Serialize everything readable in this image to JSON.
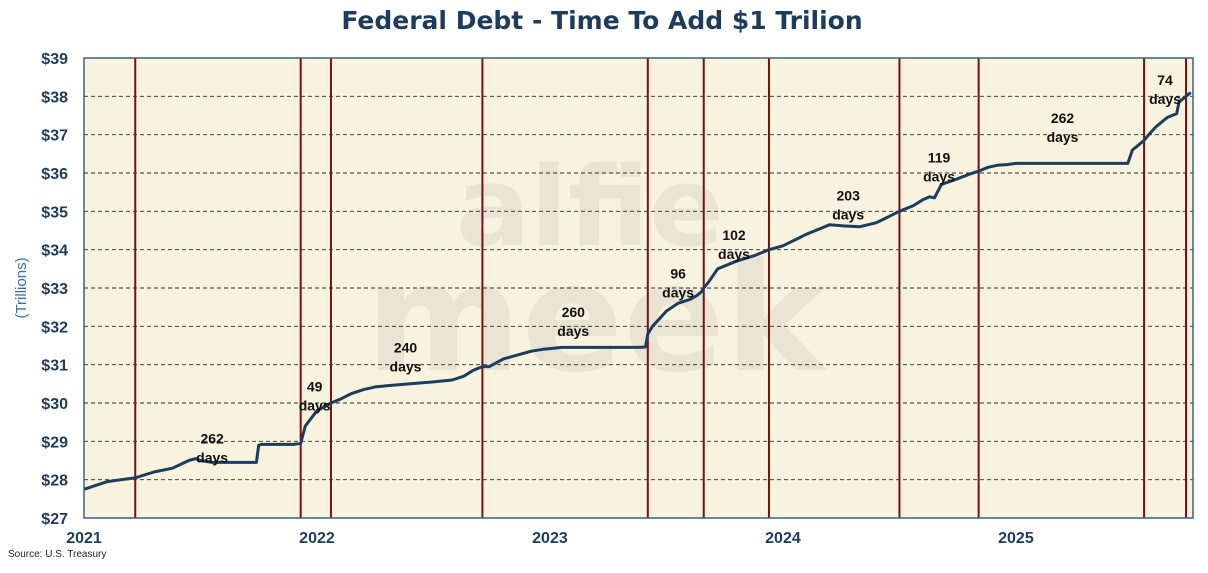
{
  "chart_data": {
    "type": "line",
    "title": "Federal Debt - Time To Add $1 Trilion",
    "ylabel": "(Trillions)",
    "xlabel": "",
    "source": "Source: U.S. Treasury",
    "watermark": [
      "alfie",
      "meek"
    ],
    "ylim": [
      27,
      39
    ],
    "xlim": [
      2021.0,
      2025.76
    ],
    "y_ticks": [
      {
        "value": 27,
        "label": "$27"
      },
      {
        "value": 28,
        "label": "$28"
      },
      {
        "value": 29,
        "label": "$29"
      },
      {
        "value": 30,
        "label": "$30"
      },
      {
        "value": 31,
        "label": "$31"
      },
      {
        "value": 32,
        "label": "$32"
      },
      {
        "value": 33,
        "label": "$33"
      },
      {
        "value": 34,
        "label": "$34"
      },
      {
        "value": 35,
        "label": "$35"
      },
      {
        "value": 36,
        "label": "$36"
      },
      {
        "value": 37,
        "label": "$37"
      },
      {
        "value": 38,
        "label": "$38"
      },
      {
        "value": 39,
        "label": "$39"
      }
    ],
    "x_ticks": [
      {
        "value": 2021,
        "label": "2021"
      },
      {
        "value": 2022,
        "label": "2022"
      },
      {
        "value": 2023,
        "label": "2023"
      },
      {
        "value": 2024,
        "label": "2024"
      },
      {
        "value": 2025,
        "label": "2025"
      }
    ],
    "milestone_dates": [
      2021.22,
      2021.93,
      2022.06,
      2022.71,
      2023.42,
      2023.66,
      2023.94,
      2024.5,
      2024.84,
      2025.55,
      2025.73
    ],
    "series": [
      {
        "name": "Federal Debt",
        "color": "#1c3d5f",
        "x": [
          2021.0,
          2021.05,
          2021.1,
          2021.16,
          2021.22,
          2021.3,
          2021.38,
          2021.45,
          2021.48,
          2021.5,
          2021.55,
          2021.6,
          2021.65,
          2021.74,
          2021.75,
          2021.76,
          2021.8,
          2021.85,
          2021.9,
          2021.93,
          2021.95,
          2022.0,
          2022.06,
          2022.1,
          2022.15,
          2022.2,
          2022.25,
          2022.3,
          2022.4,
          2022.5,
          2022.58,
          2022.63,
          2022.67,
          2022.71,
          2022.74,
          2022.8,
          2022.86,
          2022.92,
          2022.97,
          2023.0,
          2023.05,
          2023.1,
          2023.2,
          2023.3,
          2023.38,
          2023.41,
          2023.42,
          2023.44,
          2023.47,
          2023.5,
          2023.55,
          2023.6,
          2023.63,
          2023.65,
          2023.66,
          2023.68,
          2023.72,
          2023.8,
          2023.88,
          2023.94,
          2024.0,
          2024.05,
          2024.1,
          2024.16,
          2024.2,
          2024.26,
          2024.33,
          2024.4,
          2024.45,
          2024.5,
          2024.56,
          2024.6,
          2024.63,
          2024.65,
          2024.68,
          2024.75,
          2024.8,
          2024.84,
          2024.88,
          2024.92,
          2024.96,
          2025.0,
          2025.1,
          2025.2,
          2025.3,
          2025.4,
          2025.48,
          2025.5,
          2025.52,
          2025.55,
          2025.57,
          2025.6,
          2025.63,
          2025.65,
          2025.67,
          2025.69,
          2025.7,
          2025.72,
          2025.73,
          2025.75
        ],
        "values": [
          27.75,
          27.85,
          27.95,
          28.0,
          28.05,
          28.2,
          28.3,
          28.5,
          28.55,
          28.5,
          28.45,
          28.45,
          28.45,
          28.45,
          28.9,
          28.92,
          28.92,
          28.92,
          28.92,
          28.95,
          29.4,
          29.8,
          30.0,
          30.1,
          30.25,
          30.35,
          30.42,
          30.45,
          30.5,
          30.55,
          30.6,
          30.7,
          30.85,
          30.95,
          30.95,
          31.15,
          31.25,
          31.35,
          31.4,
          31.42,
          31.45,
          31.45,
          31.45,
          31.45,
          31.45,
          31.46,
          31.8,
          32.0,
          32.2,
          32.4,
          32.6,
          32.7,
          32.8,
          32.9,
          33.0,
          33.15,
          33.5,
          33.7,
          33.85,
          34.0,
          34.1,
          34.25,
          34.4,
          34.55,
          34.65,
          34.62,
          34.6,
          34.7,
          34.85,
          35.0,
          35.15,
          35.3,
          35.38,
          35.35,
          35.7,
          35.85,
          35.97,
          36.05,
          36.15,
          36.2,
          36.22,
          36.25,
          36.25,
          36.25,
          36.25,
          36.25,
          36.25,
          36.6,
          36.7,
          36.85,
          37.0,
          37.2,
          37.35,
          37.45,
          37.5,
          37.55,
          37.85,
          37.95,
          38.0,
          38.1
        ]
      }
    ],
    "annotations": [
      {
        "x": 2021.55,
        "y": 28.95,
        "lines": [
          "262",
          "days"
        ]
      },
      {
        "x": 2021.99,
        "y": 30.3,
        "lines": [
          "49",
          "days"
        ]
      },
      {
        "x": 2022.38,
        "y": 31.32,
        "lines": [
          "240",
          "days"
        ]
      },
      {
        "x": 2023.1,
        "y": 32.25,
        "lines": [
          "260",
          "days"
        ]
      },
      {
        "x": 2023.55,
        "y": 33.25,
        "lines": [
          "96",
          "days"
        ]
      },
      {
        "x": 2023.79,
        "y": 34.25,
        "lines": [
          "102",
          "days"
        ]
      },
      {
        "x": 2024.28,
        "y": 35.28,
        "lines": [
          "203",
          "days"
        ]
      },
      {
        "x": 2024.67,
        "y": 36.28,
        "lines": [
          "119",
          "days"
        ]
      },
      {
        "x": 2025.2,
        "y": 37.3,
        "lines": [
          "262",
          "days"
        ]
      },
      {
        "x": 2025.64,
        "y": 38.3,
        "lines": [
          "74",
          "days"
        ]
      }
    ]
  }
}
